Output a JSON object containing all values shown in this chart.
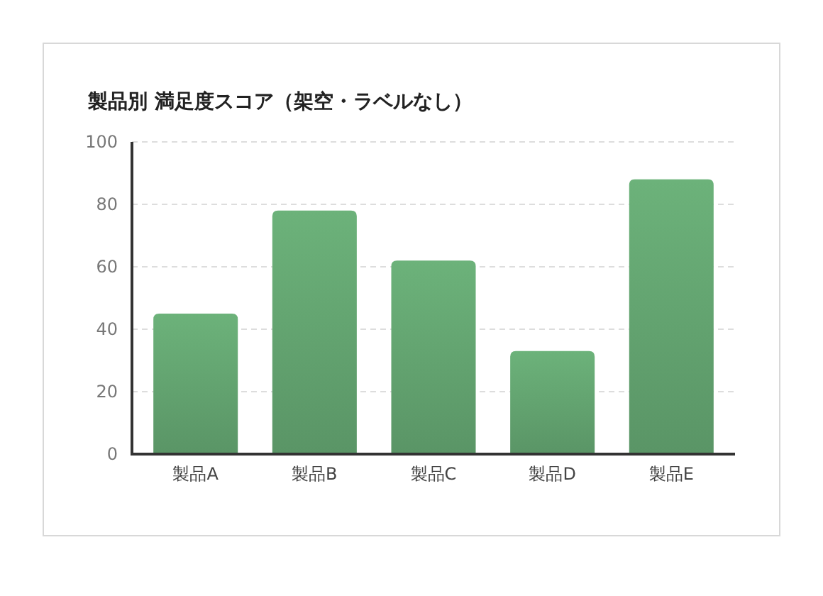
{
  "chart_data": {
    "type": "bar",
    "title": "製品別 満足度スコア（架空・ラベルなし）",
    "categories": [
      "製品A",
      "製品B",
      "製品C",
      "製品D",
      "製品E"
    ],
    "values": [
      45,
      78,
      62,
      33,
      88
    ],
    "color": "#5a9566",
    "ylim": [
      0,
      100
    ],
    "yticks": [
      0,
      20,
      40,
      60,
      80,
      100
    ],
    "grid": "y"
  }
}
